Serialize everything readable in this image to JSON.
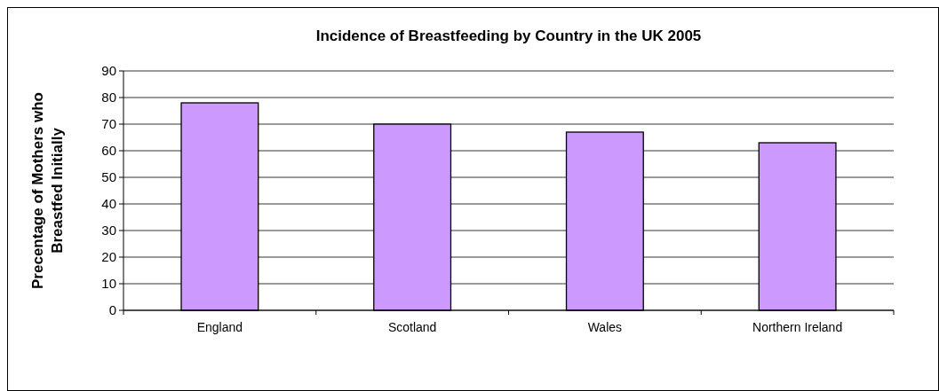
{
  "chart_data": {
    "type": "bar",
    "title": "Incidence of Breastfeeding by Country in the UK 2005",
    "ylabel": "Precentage of Mothers who Breastfed Initially",
    "categories": [
      "England",
      "Scotland",
      "Wales",
      "Northern Ireland"
    ],
    "values": [
      78,
      70,
      67,
      63
    ],
    "color": "#cc99ff",
    "ylim": [
      0,
      90
    ],
    "yticks": [
      0,
      10,
      20,
      30,
      40,
      50,
      60,
      70,
      80,
      90
    ],
    "grid": "y"
  }
}
